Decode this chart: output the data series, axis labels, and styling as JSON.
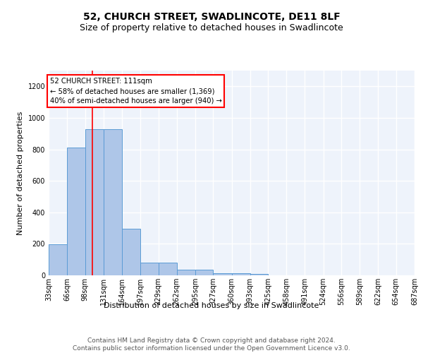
{
  "title": "52, CHURCH STREET, SWADLINCOTE, DE11 8LF",
  "subtitle": "Size of property relative to detached houses in Swadlincote",
  "xlabel": "Distribution of detached houses by size in Swadlincote",
  "ylabel": "Number of detached properties",
  "bar_edges": [
    33,
    66,
    98,
    131,
    164,
    197,
    229,
    262,
    295,
    327,
    360,
    393,
    425,
    458,
    491,
    524,
    556,
    589,
    622,
    654,
    687
  ],
  "bar_heights": [
    197,
    810,
    930,
    930,
    298,
    80,
    80,
    35,
    35,
    15,
    15,
    10,
    0,
    0,
    0,
    0,
    0,
    0,
    0,
    0
  ],
  "bar_color": "#aec6e8",
  "bar_edge_color": "#5b9bd5",
  "red_line_x": 111,
  "annotation_text": "52 CHURCH STREET: 111sqm\n← 58% of detached houses are smaller (1,369)\n40% of semi-detached houses are larger (940) →",
  "annotation_box_color": "white",
  "annotation_box_edge": "red",
  "ylim": [
    0,
    1300
  ],
  "yticks": [
    0,
    200,
    400,
    600,
    800,
    1000,
    1200
  ],
  "tick_labels": [
    "33sqm",
    "66sqm",
    "98sqm",
    "131sqm",
    "164sqm",
    "197sqm",
    "229sqm",
    "262sqm",
    "295sqm",
    "327sqm",
    "360sqm",
    "393sqm",
    "425sqm",
    "458sqm",
    "491sqm",
    "524sqm",
    "556sqm",
    "589sqm",
    "622sqm",
    "654sqm",
    "687sqm"
  ],
  "footer_text": "Contains HM Land Registry data © Crown copyright and database right 2024.\nContains public sector information licensed under the Open Government Licence v3.0.",
  "bg_color": "#eef3fb",
  "grid_color": "#ffffff",
  "title_fontsize": 10,
  "subtitle_fontsize": 9,
  "axis_label_fontsize": 8,
  "tick_fontsize": 7,
  "footer_fontsize": 6.5
}
